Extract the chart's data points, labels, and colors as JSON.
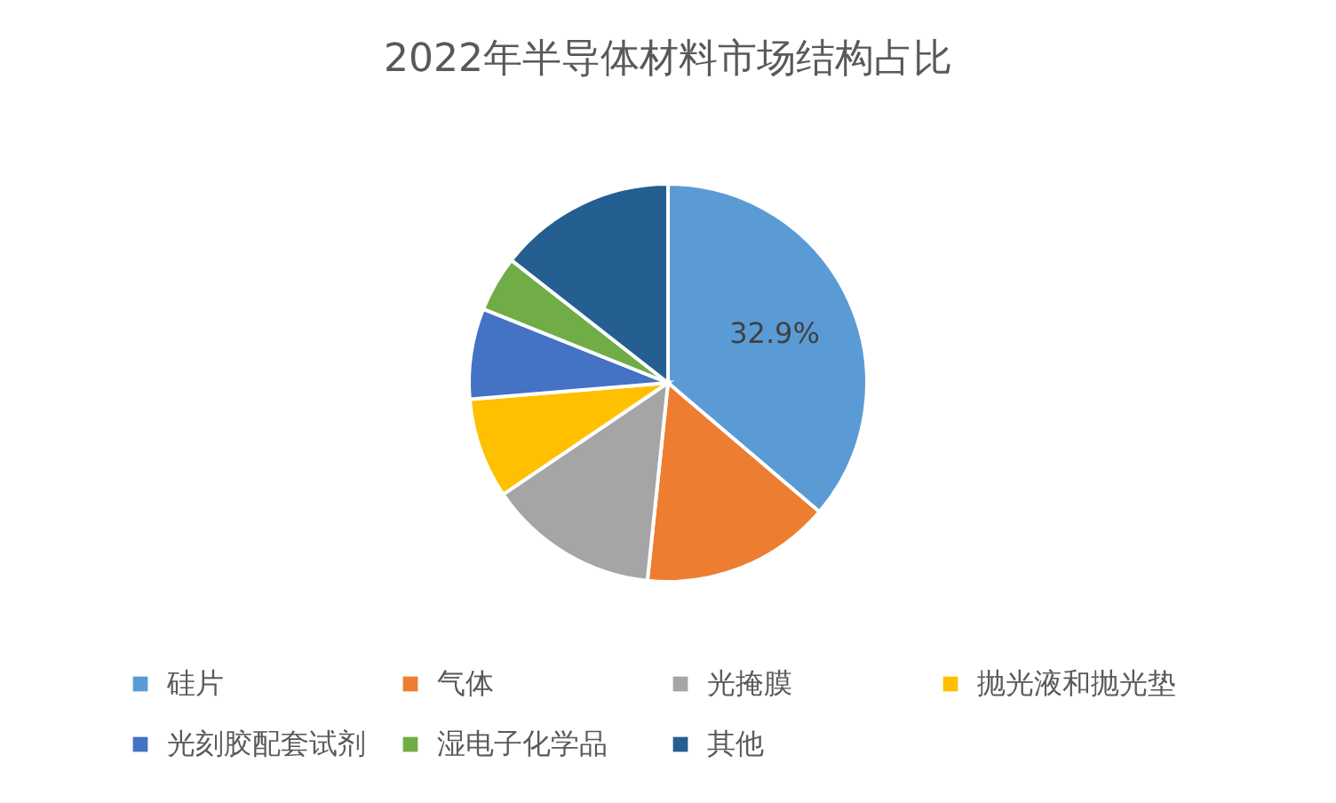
{
  "chart_data": {
    "type": "pie",
    "title": "2022年半导体材料市场结构占比",
    "categories": [
      "硅片",
      "气体",
      "光掩膜",
      "抛光液和抛光垫",
      "光刻胶配套试剂",
      "湿电子化学品",
      "其他"
    ],
    "values": [
      32.9,
      14.0,
      12.6,
      7.4,
      6.7,
      4.1,
      13.1
    ],
    "colors": [
      "#5b9bd5",
      "#ed7d31",
      "#a5a5a5",
      "#ffc000",
      "#4472c4",
      "#70ad47",
      "#255e91"
    ],
    "value_labels": [
      "32.9%",
      null,
      null,
      null,
      null,
      null,
      null
    ],
    "legend": "bottom"
  }
}
